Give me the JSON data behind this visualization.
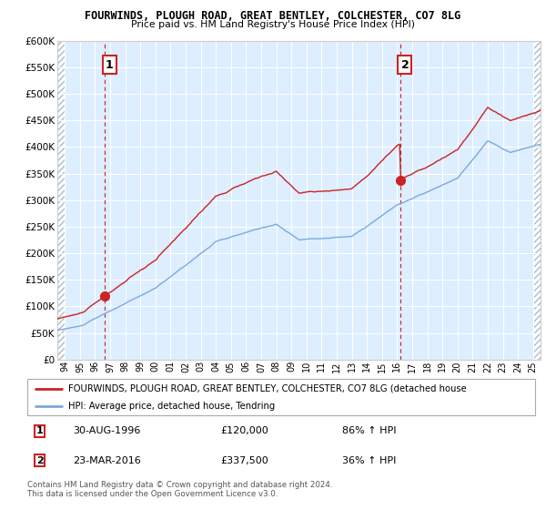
{
  "title": "FOURWINDS, PLOUGH ROAD, GREAT BENTLEY, COLCHESTER, CO7 8LG",
  "subtitle": "Price paid vs. HM Land Registry's House Price Index (HPI)",
  "legend_line1": "FOURWINDS, PLOUGH ROAD, GREAT BENTLEY, COLCHESTER, CO7 8LG (detached house",
  "legend_line2": "HPI: Average price, detached house, Tendring",
  "footnote": "Contains HM Land Registry data © Crown copyright and database right 2024.\nThis data is licensed under the Open Government Licence v3.0.",
  "annotation1_label": "1",
  "annotation1_date": "30-AUG-1996",
  "annotation1_price": "£120,000",
  "annotation1_hpi": "86% ↑ HPI",
  "annotation2_label": "2",
  "annotation2_date": "23-MAR-2016",
  "annotation2_price": "£337,500",
  "annotation2_hpi": "36% ↑ HPI",
  "sale1_x": 1996.66,
  "sale1_y": 120000,
  "sale2_x": 2016.22,
  "sale2_y": 337500,
  "hpi_color": "#7aaadd",
  "price_color": "#cc2222",
  "vline_color": "#cc2222",
  "bg_color": "#ddeeff",
  "hatch_color": "#bbccdd",
  "ylim": [
    0,
    600000
  ],
  "ytick_max": 600000,
  "ytick_step": 50000,
  "xlim_start": 1993.5,
  "xlim_end": 2025.5,
  "xtick_start": 1994,
  "xtick_end": 2025
}
